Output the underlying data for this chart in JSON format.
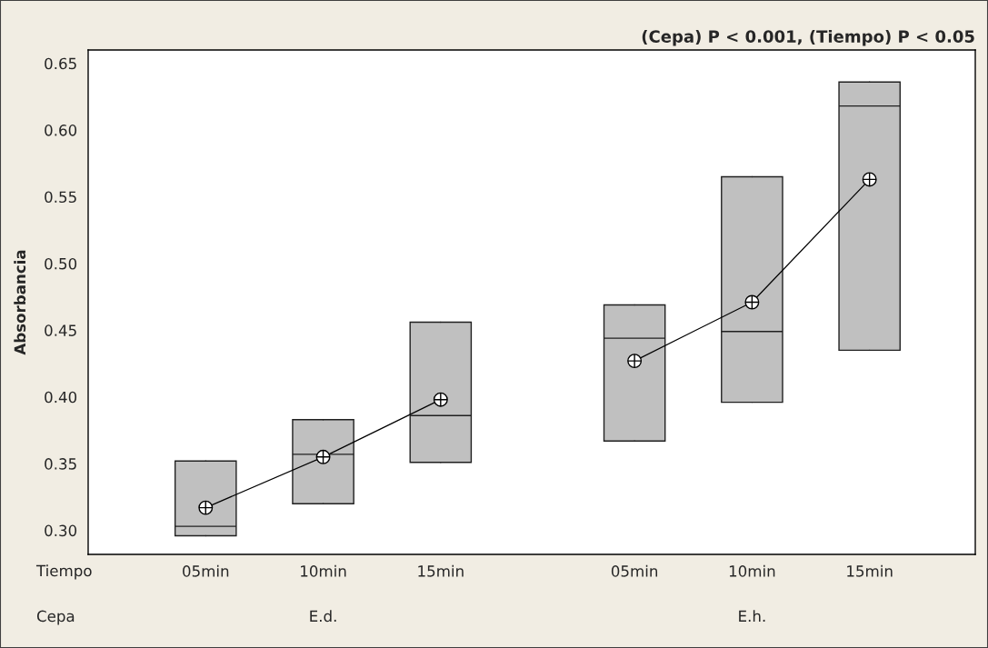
{
  "chart_data": {
    "type": "box",
    "title": "(Cepa) P < 0.001, (Tiempo) P < 0.05",
    "ylabel": "Absorbancia",
    "categories": [
      "05min",
      "10min",
      "15min",
      "05min",
      "10min",
      "15min"
    ],
    "annotations": [
      "Tiempo",
      "Cepa",
      "E.d.",
      "E.h."
    ],
    "color": "#c0c0c0",
    "boxes": [
      {
        "low": 0.296,
        "q1": 0.296,
        "median": 0.303,
        "q3": 0.352,
        "high": 0.352
      },
      {
        "low": 0.32,
        "q1": 0.32,
        "median": 0.357,
        "q3": 0.383,
        "high": 0.383
      },
      {
        "low": 0.351,
        "q1": 0.351,
        "median": 0.386,
        "q3": 0.456,
        "high": 0.456
      },
      {
        "low": 0.367,
        "q1": 0.367,
        "median": 0.444,
        "q3": 0.469,
        "high": 0.469
      },
      {
        "low": 0.396,
        "q1": 0.396,
        "median": 0.449,
        "q3": 0.565,
        "high": 0.565
      },
      {
        "low": 0.435,
        "q1": 0.435,
        "median": 0.618,
        "q3": 0.636,
        "high": 0.636
      }
    ],
    "series": [
      {
        "type": "line",
        "color": "#000000",
        "values": [
          0.317,
          0.355,
          0.398,
          null,
          null,
          null
        ]
      },
      {
        "type": "line",
        "color": "#000000",
        "values": [
          null,
          null,
          null,
          0.427,
          0.471,
          0.563
        ]
      }
    ],
    "marker": "circle",
    "line_style": "solid",
    "ylim": [
      0.282,
      0.66
    ],
    "yticks": [
      {
        "value": 0.3,
        "label": "0.30"
      },
      {
        "value": 0.35,
        "label": "0.35"
      },
      {
        "value": 0.4,
        "label": "0.40"
      },
      {
        "value": 0.45,
        "label": "0.45"
      },
      {
        "value": 0.5,
        "label": "0.50"
      },
      {
        "value": 0.55,
        "label": "0.55"
      },
      {
        "value": 0.6,
        "label": "0.60"
      },
      {
        "value": 0.65,
        "label": "0.65"
      }
    ],
    "grid": false,
    "legend": false
  }
}
